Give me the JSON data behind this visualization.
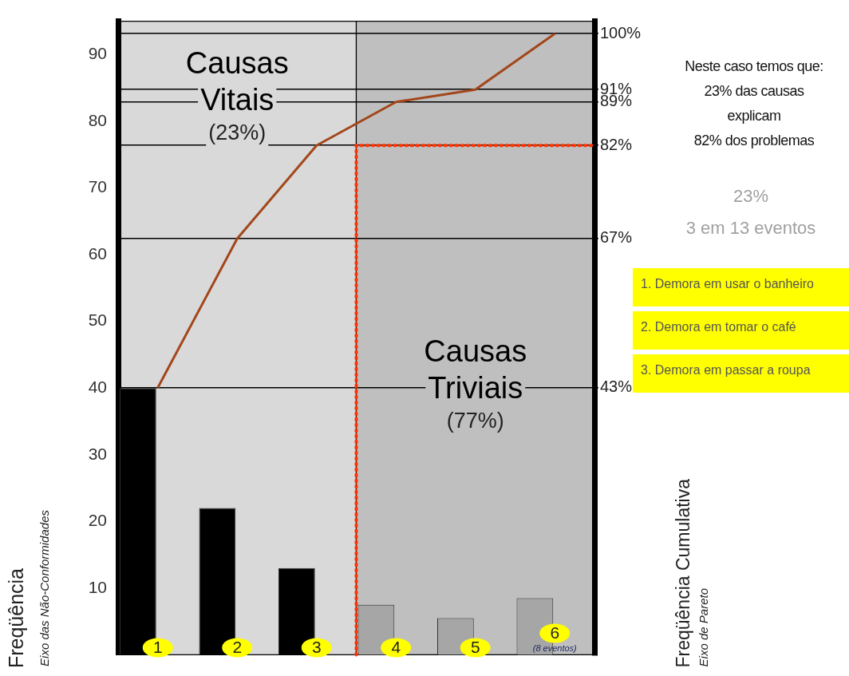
{
  "chart_data": {
    "type": "bar",
    "categories": [
      "1",
      "2",
      "3",
      "4",
      "5",
      "6"
    ],
    "series": [
      {
        "colors": [
          "#000000",
          "#000000",
          "#000000",
          "#a6a6a6",
          "#a6a6a6",
          "#a6a6a6"
        ],
        "values": [
          40,
          22,
          13,
          7.5,
          5.5,
          8.5
        ]
      },
      {
        "type": "line",
        "axis": "y2",
        "color": "#a3461a",
        "values": [
          43,
          67,
          82,
          89,
          91,
          100
        ]
      }
    ],
    "ylabel": "Freqüência",
    "y2label": "Freqüência Cumulativa",
    "ylim": [
      0,
      95
    ],
    "yticks": [
      10,
      20,
      30,
      40,
      50,
      60,
      70,
      80,
      90
    ],
    "y2lim": [
      0,
      102
    ],
    "y2ticks": [
      {
        "value": 43,
        "label": "43%"
      },
      {
        "value": 67,
        "label": "67%"
      },
      {
        "value": 82,
        "label": "82%"
      },
      {
        "value": 89,
        "label": "89%"
      },
      {
        "value": 91,
        "label": "91%"
      },
      {
        "value": 100,
        "label": "100%"
      }
    ],
    "grid": "y",
    "marker": "none",
    "line_style": "solid",
    "bands": [
      {
        "axis": "x",
        "from": "1",
        "to": "3",
        "label": "Causas\nVitais\n(23%)",
        "color": "#d9d9d9"
      },
      {
        "axis": "x",
        "from": "4",
        "to": "6",
        "label": "Causas\nTriviais\n(77%)",
        "color": "#bfbfbf"
      }
    ],
    "ref_lines": [
      {
        "axis": "y2",
        "value": 82,
        "color": "#ff3300",
        "line_style": "dotted"
      }
    ],
    "annotations": [
      "Neste caso temos que:\n23% das causas\nexplicam\n82% dos problemas",
      "23%\n3 em 13 eventos",
      "1. Demora em usar o banheiro",
      "2. Demora em tomar o café",
      "3. Demora em passar a roupa",
      "Eixo das Não-Conformidades",
      "Eixo de Pareto",
      "(8 eventos)"
    ]
  }
}
